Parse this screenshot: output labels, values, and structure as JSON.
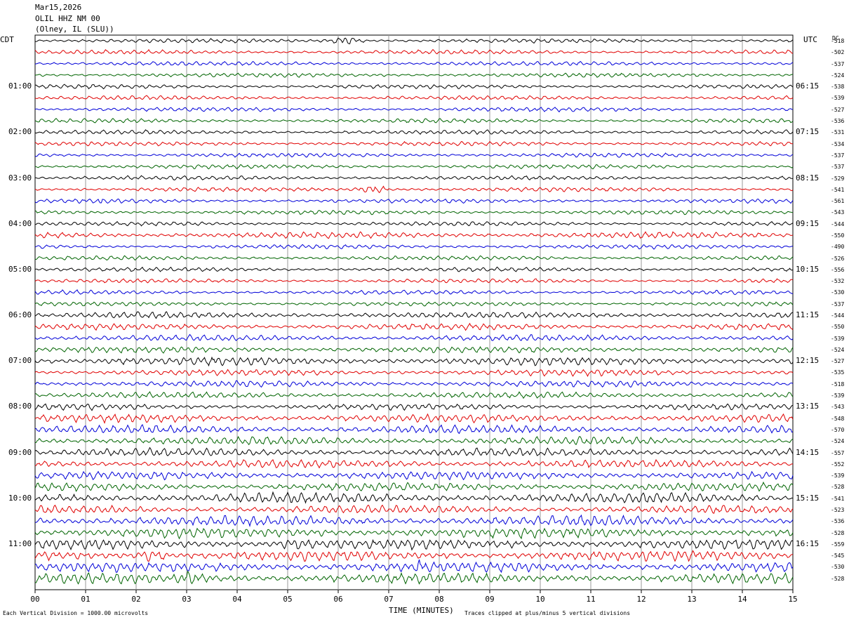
{
  "header": {
    "date": "Mar15,2026",
    "station": "OLIL HHZ NM 00",
    "location": "(Olney, IL (SLU))"
  },
  "left_tz": "CDT",
  "right_tz": "UTC",
  "dc_label": "DC",
  "footer": {
    "scale_note": "Each Vertical Division = 1000.00 microvolts",
    "xlabel": "TIME (MINUTES)",
    "clip_note": "Traces clipped at plus/minus 5 vertical divisions"
  },
  "chart_data": {
    "type": "line",
    "title": "OLIL HHZ NM 00",
    "xlabel": "TIME (MINUTES)",
    "xlim": [
      0,
      15
    ],
    "x_ticks": [
      "00",
      "01",
      "02",
      "03",
      "04",
      "05",
      "06",
      "07",
      "08",
      "09",
      "10",
      "11",
      "12",
      "13",
      "14",
      "15"
    ],
    "rows": 48,
    "grid": true,
    "trace_colors": [
      "#000000",
      "#e00000",
      "#0000d8",
      "#006400"
    ],
    "left_hour_labels": [
      "01:00",
      "02:00",
      "03:00",
      "04:00",
      "05:00",
      "06:00",
      "07:00",
      "08:00",
      "09:00",
      "10:00",
      "11:00"
    ],
    "right_hour_labels": [
      "06:15",
      "07:15",
      "08:15",
      "09:15",
      "10:15",
      "11:15",
      "12:15",
      "13:15",
      "14:15",
      "15:15",
      "16:15"
    ],
    "dc_offsets": [
      -518,
      -502,
      -537,
      -524,
      -538,
      -539,
      -527,
      -536,
      -531,
      -534,
      -537,
      -537,
      -529,
      -541,
      -561,
      -543,
      -544,
      -550,
      -490,
      -526,
      -556,
      -532,
      -530,
      -537,
      -544,
      -550,
      -539,
      -524,
      -527,
      -535,
      -518,
      -539,
      -543,
      -548,
      -570,
      -524,
      -557,
      -552,
      -539,
      -528,
      -541,
      -523,
      -536,
      -528,
      -559,
      -545,
      -530,
      -528
    ],
    "row_activity": [
      1,
      1,
      1,
      1,
      1,
      1,
      1,
      1,
      1,
      1,
      1,
      1,
      1,
      1,
      1,
      1,
      1,
      2,
      1,
      1,
      1,
      1,
      1,
      1,
      2,
      2,
      2,
      2,
      3,
      2,
      2,
      2,
      2,
      3,
      3,
      3,
      3,
      3,
      3,
      3,
      4,
      3,
      4,
      4,
      4,
      4,
      4,
      4
    ],
    "events": [
      {
        "row": 0,
        "minute": 6.15,
        "note": "burst"
      },
      {
        "row": 14,
        "minute": 1.3,
        "note": "spike"
      },
      {
        "row": 13,
        "minute": 6.7,
        "note": "burst"
      },
      {
        "row": 44,
        "minute": 5.15,
        "note": "burst"
      },
      {
        "row": 45,
        "minute": 2.3,
        "note": "burst"
      },
      {
        "row": 46,
        "minute": 7.6,
        "note": "spike"
      },
      {
        "row": 47,
        "minute": 3.1,
        "note": "burst"
      }
    ]
  }
}
